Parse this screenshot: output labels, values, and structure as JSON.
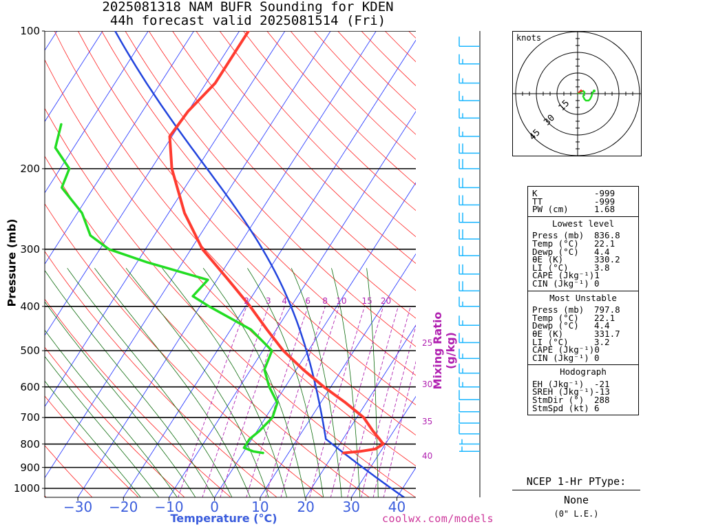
{
  "title": {
    "line1": "2025081318 NAM BUFR Sounding for KDEN",
    "line2": "44h forecast valid 2025081514 (Fri)"
  },
  "colors": {
    "temperature": "#ff3b30",
    "dewpoint": "#22dd22",
    "dry_adiabat": "#ff2020",
    "isotherm": "#3040ff",
    "moist_adiabat": "#0a6a0a",
    "mixing_ratio": "#b020b0",
    "parcel": "#2244dd",
    "wind_barb": "#19b6ff",
    "axis_label": "#3a5cdc",
    "credit": "#cc3399"
  },
  "chart_data": {
    "type": "skew-t",
    "ylabel": "Pressure (mb)",
    "xlabel": "Temperature (°C)",
    "pressure_ticks": [
      100,
      200,
      300,
      400,
      500,
      600,
      700,
      800,
      900,
      1000
    ],
    "temperature_ticks": [
      -30,
      -20,
      -10,
      0,
      10,
      20,
      30,
      40
    ],
    "xlim": [
      -40,
      42
    ],
    "ylim": [
      1050,
      100
    ],
    "mixing_ratio_label": "Mixing Ratio (g/kg)",
    "mixing_ratio_ticks": [
      "2",
      "3",
      "4",
      "6",
      "8",
      "10",
      "15",
      "20",
      "25",
      "30",
      "35",
      "40"
    ],
    "mixing_ratio_values": [
      2,
      3,
      4,
      6,
      8,
      10,
      15,
      20,
      25,
      30,
      35,
      40
    ],
    "series": [
      {
        "name": "Temperature",
        "pressure": [
          836.8,
          830,
          820,
          800,
          780,
          750,
          700,
          650,
          600,
          550,
          500,
          450,
          400,
          350,
          300,
          250,
          200,
          170,
          150,
          130,
          115,
          100
        ],
        "temp_c": [
          22.1,
          25.5,
          28.5,
          29.5,
          28.0,
          25.5,
          21.5,
          15.5,
          8.5,
          1.5,
          -5.5,
          -12.0,
          -19.0,
          -27.5,
          -37.5,
          -46.5,
          -55.5,
          -60.5,
          -60.0,
          -58.0,
          -58.0,
          -58.0
        ]
      },
      {
        "name": "Dewpoint",
        "pressure": [
          836.8,
          830,
          815,
          800,
          780,
          750,
          700,
          650,
          600,
          550,
          500,
          450,
          400,
          380,
          350,
          320,
          300,
          280,
          250,
          220,
          200,
          180,
          160
        ],
        "dewpt_c": [
          4.4,
          2.0,
          -0.5,
          -0.5,
          -0.5,
          0.5,
          1.5,
          0.5,
          -3.5,
          -7.0,
          -8.0,
          -15.5,
          -28.0,
          -33.0,
          -32.0,
          -48.0,
          -58.0,
          -64.0,
          -69.0,
          -77.0,
          -78.0,
          -84.0,
          -86.0
        ]
      }
    ],
    "parcel": {
      "surface_pressure": 836.8,
      "surface_temp_c": 22.1
    },
    "wind_barbs": [
      {
        "p": 830,
        "kt": 5
      },
      {
        "p": 800,
        "kt": 5
      },
      {
        "p": 760,
        "kt": 10
      },
      {
        "p": 720,
        "kt": 10
      },
      {
        "p": 680,
        "kt": 10
      },
      {
        "p": 640,
        "kt": 10
      },
      {
        "p": 600,
        "kt": 15
      },
      {
        "p": 560,
        "kt": 15
      },
      {
        "p": 520,
        "kt": 15
      },
      {
        "p": 480,
        "kt": 15
      },
      {
        "p": 440,
        "kt": 15
      },
      {
        "p": 400,
        "kt": 15
      },
      {
        "p": 370,
        "kt": 20
      },
      {
        "p": 340,
        "kt": 20
      },
      {
        "p": 310,
        "kt": 20
      },
      {
        "p": 285,
        "kt": 20
      },
      {
        "p": 262,
        "kt": 20
      },
      {
        "p": 240,
        "kt": 20
      },
      {
        "p": 220,
        "kt": 20
      },
      {
        "p": 200,
        "kt": 20
      },
      {
        "p": 185,
        "kt": 20
      },
      {
        "p": 170,
        "kt": 15
      },
      {
        "p": 155,
        "kt": 15
      },
      {
        "p": 142,
        "kt": 15
      },
      {
        "p": 130,
        "kt": 15
      },
      {
        "p": 118,
        "kt": 15
      },
      {
        "p": 108,
        "kt": 10
      }
    ]
  },
  "credit": "coolwx.com/models",
  "hodograph": {
    "unit_label": "knots",
    "ring_labels": [
      "15",
      "30",
      "45"
    ],
    "ring_values": [
      15,
      30,
      45
    ],
    "trace_color": "#22dd22",
    "storm_color": "#ff2020"
  },
  "params": {
    "indices": [
      {
        "label": "K",
        "value": "-999"
      },
      {
        "label": "TT",
        "value": "-999"
      },
      {
        "label": "PW (cm)",
        "value": "1.68"
      }
    ],
    "lowest_level": {
      "title": "Lowest level",
      "rows": [
        {
          "label": "Press (mb)",
          "value": "836.8"
        },
        {
          "label": "Temp (°C)",
          "value": "22.1"
        },
        {
          "label": "Dewp (°C)",
          "value": "4.4"
        },
        {
          "label": "θE (K)",
          "value": "330.2"
        },
        {
          "label": "LI (°C)",
          "value": "3.8"
        },
        {
          "label": "CAPE (Jkg⁻¹)",
          "value": "1"
        },
        {
          "label": "CIN (Jkg⁻¹)",
          "value": "0"
        }
      ]
    },
    "most_unstable": {
      "title": "Most Unstable",
      "rows": [
        {
          "label": "Press (mb)",
          "value": "797.8"
        },
        {
          "label": "Temp (°C)",
          "value": "22.1"
        },
        {
          "label": "Dewp (°C)",
          "value": "4.4"
        },
        {
          "label": "θE (K)",
          "value": "331.7"
        },
        {
          "label": "LI (°C)",
          "value": "3.2"
        },
        {
          "label": "CAPE (Jkg⁻¹)",
          "value": "0"
        },
        {
          "label": "CIN (Jkg⁻¹)",
          "value": "0"
        }
      ]
    },
    "hodograph": {
      "title": "Hodograph",
      "rows": [
        {
          "label": "EH (Jkg⁻¹)",
          "value": "-21"
        },
        {
          "label": "SREH (Jkg⁻¹)",
          "value": "-13"
        },
        {
          "label": "StmDir (°)",
          "value": "288"
        },
        {
          "label": "StmSpd (kt)",
          "value": "6"
        }
      ]
    }
  },
  "ptype": {
    "header": "NCEP 1-Hr PType:",
    "value": "None",
    "note": "(0\" L.E.)"
  }
}
